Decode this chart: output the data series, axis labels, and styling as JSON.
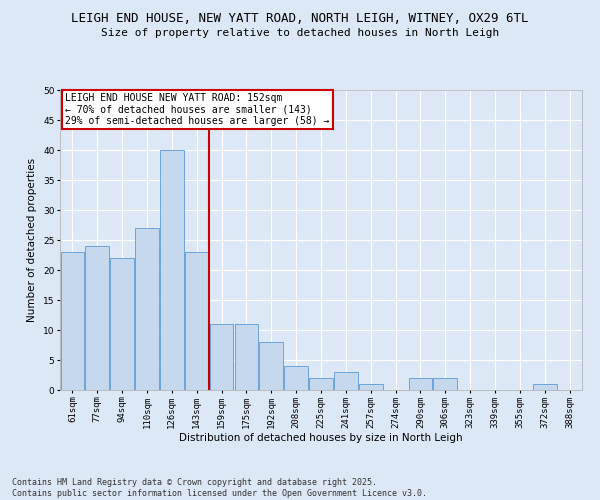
{
  "title": "LEIGH END HOUSE, NEW YATT ROAD, NORTH LEIGH, WITNEY, OX29 6TL",
  "subtitle": "Size of property relative to detached houses in North Leigh",
  "xlabel": "Distribution of detached houses by size in North Leigh",
  "ylabel": "Number of detached properties",
  "categories": [
    "61sqm",
    "77sqm",
    "94sqm",
    "110sqm",
    "126sqm",
    "143sqm",
    "159sqm",
    "175sqm",
    "192sqm",
    "208sqm",
    "225sqm",
    "241sqm",
    "257sqm",
    "274sqm",
    "290sqm",
    "306sqm",
    "323sqm",
    "339sqm",
    "355sqm",
    "372sqm",
    "388sqm"
  ],
  "values": [
    23,
    24,
    22,
    27,
    40,
    23,
    11,
    11,
    8,
    4,
    2,
    3,
    1,
    0,
    2,
    2,
    0,
    0,
    0,
    1,
    0
  ],
  "bar_color": "#c5d8ed",
  "bar_edge_color": "#5b9bd5",
  "vline_position": 5.5,
  "marker_label": "LEIGH END HOUSE NEW YATT ROAD: 152sqm",
  "annotation_line1": "← 70% of detached houses are smaller (143)",
  "annotation_line2": "29% of semi-detached houses are larger (58) →",
  "annotation_box_color": "#ffffff",
  "annotation_box_edge_color": "#cc0000",
  "vline_color": "#cc0000",
  "background_color": "#dce8f5",
  "grid_color": "#ffffff",
  "ylim": [
    0,
    50
  ],
  "yticks": [
    0,
    5,
    10,
    15,
    20,
    25,
    30,
    35,
    40,
    45,
    50
  ],
  "footer_line1": "Contains HM Land Registry data © Crown copyright and database right 2025.",
  "footer_line2": "Contains public sector information licensed under the Open Government Licence v3.0.",
  "title_fontsize": 9,
  "subtitle_fontsize": 8,
  "axis_label_fontsize": 7.5,
  "tick_fontsize": 6.5,
  "annotation_fontsize": 7,
  "footer_fontsize": 6
}
